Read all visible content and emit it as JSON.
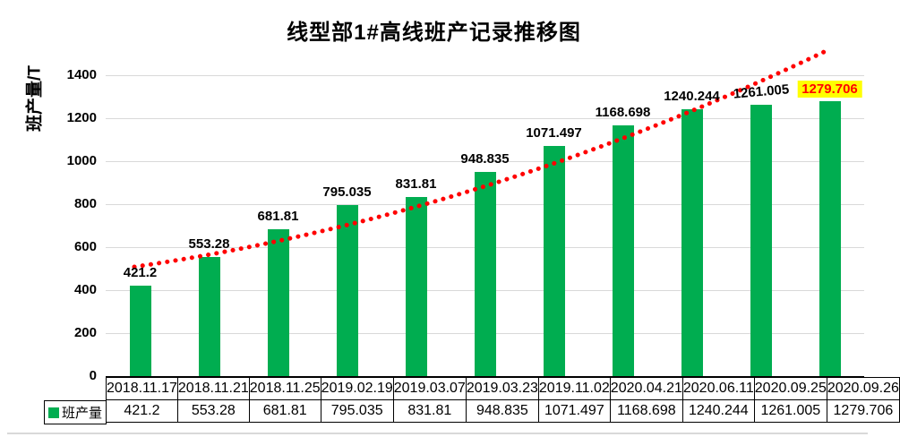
{
  "title": "线型部1#高线班产记录推移图",
  "y_axis_title": "班产量/T",
  "legend": {
    "label": "班产量",
    "swatch_icon": "green-square-icon",
    "swatch_color": "#00AD50"
  },
  "colors": {
    "bar": "#00AD50",
    "trendline": "#FF0000",
    "gridline": "#D9D9D9",
    "highlight_bg": "#FFFF00",
    "highlight_text": "#FF0000"
  },
  "chart_data": {
    "type": "bar",
    "title": "线型部1#高线班产记录推移图",
    "xlabel": "",
    "ylabel": "班产量/T",
    "categories": [
      "2018.11.17",
      "2018.11.21",
      "2018.11.25",
      "2019.02.19",
      "2019.03.07",
      "2019.03.23",
      "2019.11.02",
      "2020.04.21",
      "2020.06.11",
      "2020.09.25",
      "2020.09.26"
    ],
    "series": [
      {
        "name": "班产量",
        "values": [
          421.2,
          553.28,
          681.81,
          795.035,
          831.81,
          948.835,
          1071.497,
          1168.698,
          1240.244,
          1261.005,
          1279.706
        ]
      }
    ],
    "ylim": [
      0,
      1500
    ],
    "yticks": [
      0,
      200,
      400,
      600,
      800,
      1000,
      1200,
      1400
    ],
    "grid": true,
    "data_labels": true,
    "highlighted_point": {
      "category": "2020.09.26",
      "value": 1279.706,
      "label_bg": "#FFFF00",
      "label_color": "#FF0000"
    },
    "trendline": {
      "type": "curved",
      "style": "dotted",
      "color": "#FF0000"
    },
    "legend_position": "bottom-left-table",
    "data_table_shown": true
  }
}
